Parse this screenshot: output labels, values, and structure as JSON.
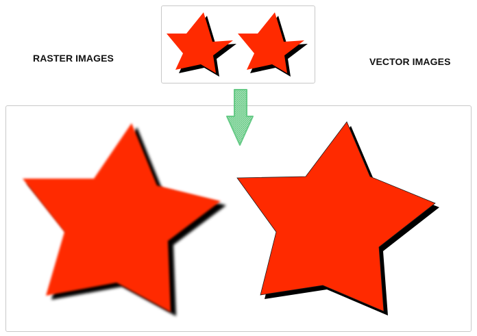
{
  "labels": {
    "raster": "RASTER IMAGES",
    "vector": "VECTOR IMAGES"
  },
  "colors": {
    "star_fill": "#ff2a00",
    "shadow": "#000000",
    "arrow": "#6fd08c",
    "panel_border": "#c8c8c8"
  },
  "icons": {
    "arrow": "down-arrow-icon",
    "star": "star-icon"
  }
}
